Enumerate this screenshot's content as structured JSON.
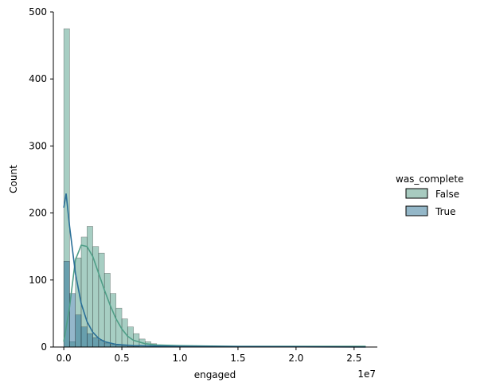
{
  "chart_data": {
    "type": "histogram",
    "xlabel": "engaged",
    "ylabel": "Count",
    "x_offset_text": "1e7",
    "x_ticks": [
      0.0,
      0.5,
      1.0,
      1.5,
      2.0,
      2.5
    ],
    "x_tick_labels": [
      "0.0",
      "0.5",
      "1.0",
      "1.5",
      "2.0",
      "2.5"
    ],
    "y_ticks": [
      0,
      100,
      200,
      300,
      400,
      500
    ],
    "y_tick_labels": [
      "0",
      "100",
      "200",
      "300",
      "400",
      "500"
    ],
    "xlim": [
      -0.09,
      2.7
    ],
    "ylim": [
      0,
      500
    ],
    "bin_width": 0.05,
    "grid": false,
    "legend": {
      "title": "was_complete",
      "placement": "right",
      "entries": [
        "False",
        "True"
      ]
    },
    "series": [
      {
        "name": "False",
        "color": "#4f9e87",
        "bin_starts": [
          0.0,
          0.05,
          0.1,
          0.15,
          0.2,
          0.25,
          0.3,
          0.35,
          0.4,
          0.45,
          0.5,
          0.55,
          0.6,
          0.65,
          0.7,
          0.75,
          0.8,
          0.85,
          0.9,
          0.95,
          1.0,
          1.05,
          1.1,
          1.15,
          1.2,
          1.25,
          1.3,
          1.35,
          1.4,
          1.45,
          1.5,
          1.55,
          1.6,
          1.65,
          1.7,
          1.75,
          1.8,
          1.85,
          1.9,
          1.95,
          2.0,
          2.05,
          2.1,
          2.15,
          2.2,
          2.25,
          2.3,
          2.35,
          2.4,
          2.45,
          2.5,
          2.55
        ],
        "counts": [
          475,
          8,
          133,
          164,
          180,
          150,
          140,
          110,
          80,
          58,
          42,
          30,
          20,
          12,
          8,
          5,
          3,
          2,
          2,
          1,
          1,
          1,
          1,
          1,
          0,
          0,
          0,
          0,
          0,
          0,
          0,
          0,
          0,
          0,
          0,
          0,
          0,
          0,
          0,
          0,
          0,
          0,
          0,
          0,
          0,
          0,
          0,
          0,
          0,
          0,
          0,
          0
        ],
        "kde": [
          [
            0.0,
            8
          ],
          [
            0.05,
            60
          ],
          [
            0.1,
            130
          ],
          [
            0.15,
            152
          ],
          [
            0.2,
            150
          ],
          [
            0.25,
            135
          ],
          [
            0.3,
            110
          ],
          [
            0.35,
            85
          ],
          [
            0.4,
            62
          ],
          [
            0.45,
            42
          ],
          [
            0.5,
            27
          ],
          [
            0.55,
            16
          ],
          [
            0.6,
            10
          ],
          [
            0.7,
            5
          ],
          [
            0.8,
            3
          ],
          [
            1.0,
            2
          ],
          [
            1.5,
            1
          ],
          [
            2.0,
            1
          ],
          [
            2.6,
            1
          ]
        ]
      },
      {
        "name": "True",
        "color": "#2a6f97",
        "bin_starts": [
          0.0,
          0.05,
          0.1,
          0.15,
          0.2,
          0.25,
          0.3,
          0.35,
          0.4,
          0.45,
          0.5,
          0.55,
          0.6
        ],
        "counts": [
          128,
          80,
          48,
          30,
          20,
          14,
          10,
          6,
          4,
          3,
          2,
          1,
          1
        ],
        "kde": [
          [
            0.0,
            208
          ],
          [
            0.02,
            229
          ],
          [
            0.05,
            180
          ],
          [
            0.1,
            110
          ],
          [
            0.15,
            65
          ],
          [
            0.2,
            38
          ],
          [
            0.25,
            22
          ],
          [
            0.3,
            13
          ],
          [
            0.35,
            8
          ],
          [
            0.45,
            4
          ],
          [
            0.6,
            2
          ],
          [
            1.0,
            1
          ],
          [
            2.6,
            0
          ]
        ]
      }
    ]
  }
}
